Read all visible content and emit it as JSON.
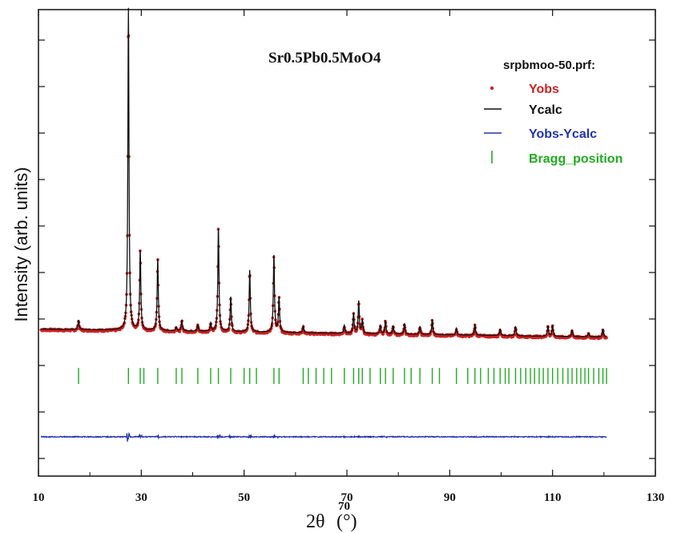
{
  "chart_data": {
    "type": "line",
    "title": "Sr0.5Pb0.5MoO4",
    "xlabel_main": "2θ",
    "xlabel_sup": "70",
    "xlabel_unit": "(°)",
    "ylabel": "Intensity (arb. units)",
    "xlim": [
      10,
      130
    ],
    "x_ticks": [
      10,
      30,
      50,
      70,
      90,
      110,
      130
    ],
    "legend": {
      "title": "srpbmoo-50.prf:",
      "placement": "top-right",
      "entries": [
        {
          "label": "Yobs",
          "color": "#cc2222",
          "marker": "dot"
        },
        {
          "label": "Ycalc",
          "color": "#111111",
          "marker": "line"
        },
        {
          "label": "Yobs-Ycalc",
          "color": "#2233aa",
          "marker": "line"
        },
        {
          "label": "Bragg_position",
          "color": "#22aa22",
          "marker": "tick"
        }
      ]
    },
    "background": 1.0,
    "peaks": [
      {
        "x": 17.8,
        "h": 0.35
      },
      {
        "x": 27.5,
        "h": 12.0
      },
      {
        "x": 29.8,
        "h": 3.0
      },
      {
        "x": 33.2,
        "h": 2.7
      },
      {
        "x": 36.8,
        "h": 0.15
      },
      {
        "x": 37.9,
        "h": 0.4
      },
      {
        "x": 41.0,
        "h": 0.25
      },
      {
        "x": 43.5,
        "h": 0.3
      },
      {
        "x": 45.0,
        "h": 3.9
      },
      {
        "x": 47.4,
        "h": 1.3
      },
      {
        "x": 51.1,
        "h": 2.3
      },
      {
        "x": 55.8,
        "h": 2.9
      },
      {
        "x": 56.8,
        "h": 1.3
      },
      {
        "x": 61.5,
        "h": 0.25
      },
      {
        "x": 69.5,
        "h": 0.3
      },
      {
        "x": 71.3,
        "h": 0.75
      },
      {
        "x": 72.3,
        "h": 1.2
      },
      {
        "x": 73.0,
        "h": 0.5
      },
      {
        "x": 76.5,
        "h": 0.3
      },
      {
        "x": 77.5,
        "h": 0.5
      },
      {
        "x": 79.0,
        "h": 0.3
      },
      {
        "x": 81.2,
        "h": 0.4
      },
      {
        "x": 84.2,
        "h": 0.3
      },
      {
        "x": 86.6,
        "h": 0.55
      },
      {
        "x": 91.3,
        "h": 0.25
      },
      {
        "x": 94.9,
        "h": 0.4
      },
      {
        "x": 99.8,
        "h": 0.25
      },
      {
        "x": 102.8,
        "h": 0.35
      },
      {
        "x": 109.1,
        "h": 0.4
      },
      {
        "x": 110.0,
        "h": 0.4
      },
      {
        "x": 113.8,
        "h": 0.25
      },
      {
        "x": 117.0,
        "h": 0.15
      },
      {
        "x": 119.8,
        "h": 0.3
      }
    ],
    "bragg_positions": [
      17.8,
      27.5,
      29.8,
      30.5,
      33.2,
      36.8,
      37.9,
      41.0,
      43.5,
      45.0,
      47.4,
      50.0,
      51.1,
      52.4,
      55.8,
      56.8,
      61.5,
      62.5,
      64.0,
      65.5,
      67.0,
      69.5,
      71.3,
      72.3,
      73.0,
      74.5,
      76.5,
      77.5,
      79.0,
      81.2,
      82.5,
      84.2,
      86.6,
      88.0,
      91.3,
      93.5,
      94.9,
      96.0,
      97.5,
      98.6,
      99.8,
      100.8,
      101.5,
      102.8,
      103.8,
      104.8,
      105.7,
      106.5,
      107.4,
      108.2,
      109.1,
      110.0,
      111.0,
      112.0,
      113.0,
      113.8,
      114.7,
      115.5,
      116.3,
      117.0,
      118.0,
      119.0,
      119.8,
      120.5
    ],
    "difference_curve": {
      "offset_note": "flat baseline with small spikes at peak positions"
    }
  }
}
